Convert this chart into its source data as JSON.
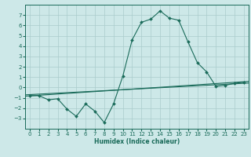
{
  "title": "",
  "xlabel": "Humidex (Indice chaleur)",
  "ylabel": "",
  "bg_color": "#cde8e8",
  "grid_color": "#aacccc",
  "line_color": "#1a6b5a",
  "spine_color": "#1a6b5a",
  "xlim": [
    -0.5,
    23.5
  ],
  "ylim": [
    -4,
    8
  ],
  "xticks": [
    0,
    1,
    2,
    3,
    4,
    5,
    6,
    7,
    8,
    9,
    10,
    11,
    12,
    13,
    14,
    15,
    16,
    17,
    18,
    19,
    20,
    21,
    22,
    23
  ],
  "yticks": [
    -3,
    -2,
    -1,
    0,
    1,
    2,
    3,
    4,
    5,
    6,
    7
  ],
  "curve1_x": [
    0,
    1,
    2,
    3,
    4,
    5,
    6,
    7,
    8,
    9,
    10,
    11,
    12,
    13,
    14,
    15,
    16,
    17,
    18,
    19,
    20,
    21,
    22,
    23
  ],
  "curve1_y": [
    -0.8,
    -0.8,
    -1.2,
    -1.1,
    -2.1,
    -2.8,
    -1.6,
    -2.3,
    -3.4,
    -1.6,
    1.1,
    4.6,
    6.3,
    6.6,
    7.4,
    6.7,
    6.5,
    4.4,
    2.4,
    1.5,
    0.1,
    0.2,
    0.4,
    0.5
  ],
  "line1_x": [
    -0.5,
    23.5
  ],
  "line1_y": [
    -0.85,
    0.58
  ],
  "line2_x": [
    -0.5,
    23.5
  ],
  "line2_y": [
    -0.72,
    0.42
  ],
  "tick_fontsize": 5.0,
  "xlabel_fontsize": 5.5,
  "marker_size": 2.0
}
